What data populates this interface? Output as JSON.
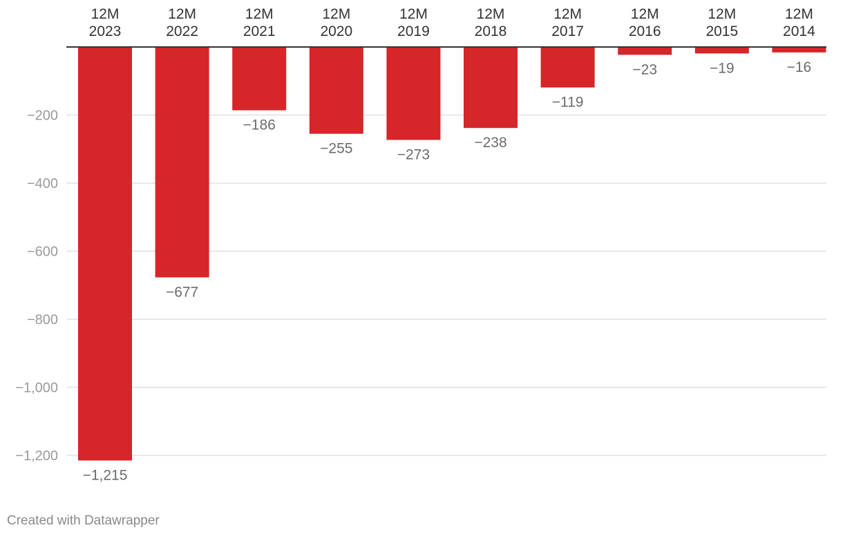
{
  "chart_data": {
    "type": "bar",
    "categories": [
      [
        "12M",
        "2023"
      ],
      [
        "12M",
        "2022"
      ],
      [
        "12M",
        "2021"
      ],
      [
        "12M",
        "2020"
      ],
      [
        "12M",
        "2019"
      ],
      [
        "12M",
        "2018"
      ],
      [
        "12M",
        "2017"
      ],
      [
        "12M",
        "2016"
      ],
      [
        "12M",
        "2015"
      ],
      [
        "12M",
        "2014"
      ]
    ],
    "values": [
      -1215,
      -677,
      -186,
      -255,
      -273,
      -238,
      -119,
      -23,
      -19,
      -16
    ],
    "value_labels": [
      "−1,215",
      "−677",
      "−186",
      "−255",
      "−273",
      "−238",
      "−119",
      "−23",
      "−19",
      "−16"
    ],
    "y_ticks": [
      -200,
      -400,
      -600,
      -800,
      -1000,
      -1200
    ],
    "y_tick_labels": [
      "−200",
      "−400",
      "−600",
      "−800",
      "−1,000",
      "−1,200"
    ],
    "ylim": [
      -1200,
      0
    ],
    "x_axis_position": "top",
    "grid": true,
    "bar_color": "#d52629",
    "title": "",
    "xlabel": "",
    "ylabel": ""
  },
  "footer": {
    "credit": "Created with Datawrapper"
  }
}
